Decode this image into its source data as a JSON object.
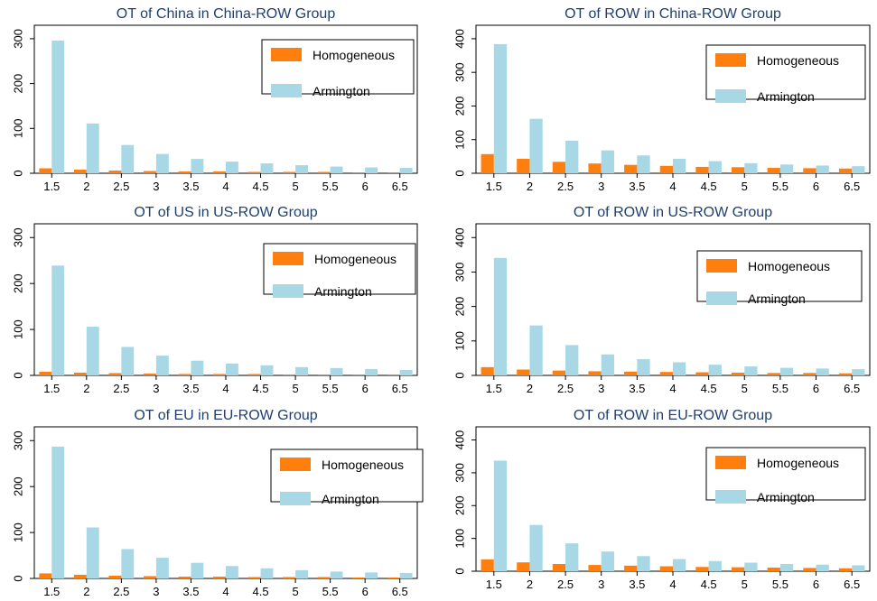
{
  "colors": {
    "homogeneous": "#ff7f0e",
    "armington": "#a8d8e6",
    "title": "#1f3f6e"
  },
  "chart_data": [
    {
      "type": "bar",
      "title": "OT of China in China-ROW Group",
      "categories": [
        "1.5",
        "2",
        "2.5",
        "3",
        "3.5",
        "4",
        "4.5",
        "5",
        "5.5",
        "6",
        "6.5"
      ],
      "series": [
        {
          "name": "Homogeneous",
          "values": [
            11,
            8,
            6,
            5,
            4,
            4,
            3,
            3,
            3,
            2,
            2
          ]
        },
        {
          "name": "Armington",
          "values": [
            296,
            111,
            63,
            43,
            32,
            26,
            22,
            18,
            15,
            13,
            12
          ]
        }
      ],
      "ylim": [
        0,
        330
      ],
      "yticks": [
        0,
        100,
        200,
        300
      ],
      "legend": "top-right",
      "grid": false
    },
    {
      "type": "bar",
      "title": "OT of ROW in China-ROW Group",
      "categories": [
        "1.5",
        "2",
        "2.5",
        "3",
        "3.5",
        "4",
        "4.5",
        "5",
        "5.5",
        "6",
        "6.5"
      ],
      "series": [
        {
          "name": "Homogeneous",
          "values": [
            57,
            43,
            34,
            29,
            25,
            22,
            19,
            18,
            16,
            15,
            14
          ]
        },
        {
          "name": "Armington",
          "values": [
            384,
            162,
            97,
            68,
            53,
            43,
            36,
            30,
            26,
            23,
            21
          ]
        }
      ],
      "ylim": [
        0,
        440
      ],
      "yticks": [
        0,
        100,
        200,
        300,
        400
      ],
      "legend": "top-right",
      "grid": false
    },
    {
      "type": "bar",
      "title": "OT of US in US-ROW Group",
      "categories": [
        "1.5",
        "2",
        "2.5",
        "3",
        "3.5",
        "4",
        "4.5",
        "5",
        "5.5",
        "6",
        "6.5"
      ],
      "series": [
        {
          "name": "Homogeneous",
          "values": [
            8,
            6,
            5,
            4,
            3,
            3,
            3,
            2,
            2,
            2,
            2
          ]
        },
        {
          "name": "Armington",
          "values": [
            239,
            106,
            62,
            43,
            32,
            26,
            22,
            18,
            16,
            14,
            12
          ]
        }
      ],
      "ylim": [
        0,
        330
      ],
      "yticks": [
        0,
        100,
        200,
        300
      ],
      "legend": "top-right",
      "grid": false
    },
    {
      "type": "bar",
      "title": "OT of ROW in US-ROW Group",
      "categories": [
        "1.5",
        "2",
        "2.5",
        "3",
        "3.5",
        "4",
        "4.5",
        "5",
        "5.5",
        "6",
        "6.5"
      ],
      "series": [
        {
          "name": "Homogeneous",
          "values": [
            24,
            17,
            14,
            12,
            11,
            10,
            9,
            8,
            7,
            7,
            6
          ]
        },
        {
          "name": "Armington",
          "values": [
            341,
            145,
            88,
            61,
            47,
            38,
            31,
            26,
            22,
            20,
            18
          ]
        }
      ],
      "ylim": [
        0,
        440
      ],
      "yticks": [
        0,
        100,
        200,
        300,
        400
      ],
      "legend": "top-right",
      "grid": false
    },
    {
      "type": "bar",
      "title": "OT of EU in EU-ROW Group",
      "categories": [
        "1.5",
        "2",
        "2.5",
        "3",
        "3.5",
        "4",
        "4.5",
        "5",
        "5.5",
        "6",
        "6.5"
      ],
      "series": [
        {
          "name": "Homogeneous",
          "values": [
            11,
            8,
            6,
            5,
            4,
            4,
            3,
            3,
            3,
            2,
            2
          ]
        },
        {
          "name": "Armington",
          "values": [
            287,
            111,
            64,
            45,
            34,
            27,
            22,
            18,
            15,
            13,
            12
          ]
        }
      ],
      "ylim": [
        0,
        330
      ],
      "yticks": [
        0,
        100,
        200,
        300
      ],
      "legend": "top-right",
      "grid": false
    },
    {
      "type": "bar",
      "title": "OT of ROW in EU-ROW Group",
      "categories": [
        "1.5",
        "2",
        "2.5",
        "3",
        "3.5",
        "4",
        "4.5",
        "5",
        "5.5",
        "6",
        "6.5"
      ],
      "series": [
        {
          "name": "Homogeneous",
          "values": [
            36,
            27,
            22,
            19,
            17,
            15,
            13,
            12,
            11,
            10,
            9
          ]
        },
        {
          "name": "Armington",
          "values": [
            337,
            141,
            85,
            60,
            46,
            37,
            31,
            26,
            22,
            20,
            18
          ]
        }
      ],
      "ylim": [
        0,
        440
      ],
      "yticks": [
        0,
        100,
        200,
        300,
        400
      ],
      "legend": "top-right",
      "grid": false
    }
  ]
}
